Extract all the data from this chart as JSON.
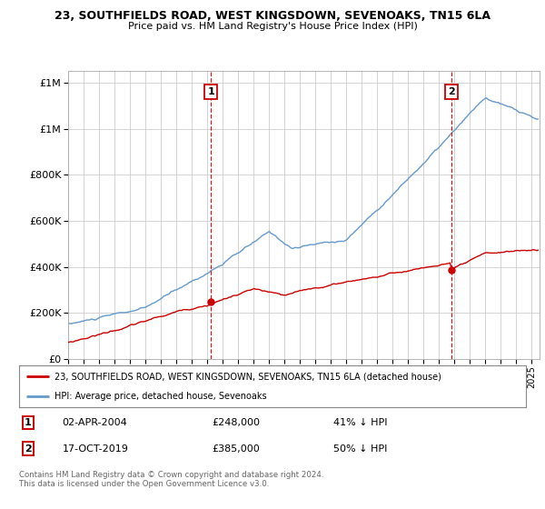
{
  "title": "23, SOUTHFIELDS ROAD, WEST KINGSDOWN, SEVENOAKS, TN15 6LA",
  "subtitle": "Price paid vs. HM Land Registry's House Price Index (HPI)",
  "sale1_date": "02-APR-2004",
  "sale1_price": 248000,
  "sale1_hpi_pct": "41% ↓ HPI",
  "sale2_date": "17-OCT-2019",
  "sale2_price": 385000,
  "sale2_hpi_pct": "50% ↓ HPI",
  "legend_property": "23, SOUTHFIELDS ROAD, WEST KINGSDOWN, SEVENOAKS, TN15 6LA (detached house)",
  "legend_hpi": "HPI: Average price, detached house, Sevenoaks",
  "footer": "Contains HM Land Registry data © Crown copyright and database right 2024.\nThis data is licensed under the Open Government Licence v3.0.",
  "property_color": "#cc0000",
  "hpi_color": "#6699cc",
  "vline_color": "#cc0000",
  "bg_color": "#ffffff",
  "grid_color": "#cccccc",
  "ylim": [
    0,
    1250000
  ],
  "xlim_start": 1995.0,
  "xlim_end": 2025.5
}
